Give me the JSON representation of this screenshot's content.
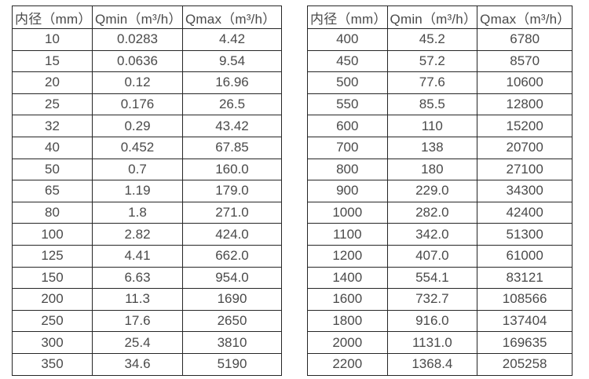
{
  "colors": {
    "border": "#262626",
    "text": "#4a4a4a",
    "background": "#ffffff"
  },
  "tables": [
    {
      "name": "flow-spec-table-small-diameters",
      "headers": [
        "内径（mm）",
        "Qmin（m³/h）",
        "Qmax（m³/h）"
      ],
      "rows": [
        [
          "10",
          "0.0283",
          "4.42"
        ],
        [
          "15",
          "0.0636",
          "9.54"
        ],
        [
          "20",
          "0.12",
          "16.96"
        ],
        [
          "25",
          "0.176",
          "26.5"
        ],
        [
          "32",
          "0.29",
          "43.42"
        ],
        [
          "40",
          "0.452",
          "67.85"
        ],
        [
          "50",
          "0.7",
          "160.0"
        ],
        [
          "65",
          "1.19",
          "179.0"
        ],
        [
          "80",
          "1.8",
          "271.0"
        ],
        [
          "100",
          "2.82",
          "424.0"
        ],
        [
          "125",
          "4.41",
          "662.0"
        ],
        [
          "150",
          "6.63",
          "954.0"
        ],
        [
          "200",
          "11.3",
          "1690"
        ],
        [
          "250",
          "17.6",
          "2650"
        ],
        [
          "300",
          "25.4",
          "3810"
        ],
        [
          "350",
          "34.6",
          "5190"
        ]
      ]
    },
    {
      "name": "flow-spec-table-large-diameters",
      "headers": [
        "内径（mm）",
        "Qmin（m³/h）",
        "Qmax（m³/h）"
      ],
      "rows": [
        [
          "400",
          "45.2",
          "6780"
        ],
        [
          "450",
          "57.2",
          "8570"
        ],
        [
          "500",
          "77.6",
          "10600"
        ],
        [
          "550",
          "85.5",
          "12800"
        ],
        [
          "600",
          "110",
          "15200"
        ],
        [
          "700",
          "138",
          "20700"
        ],
        [
          "800",
          "180",
          "27100"
        ],
        [
          "900",
          "229.0",
          "34300"
        ],
        [
          "1000",
          "282.0",
          "42400"
        ],
        [
          "1100",
          "342.0",
          "51300"
        ],
        [
          "1200",
          "407.0",
          "61000"
        ],
        [
          "1400",
          "554.1",
          "83121"
        ],
        [
          "1600",
          "732.7",
          "108566"
        ],
        [
          "1800",
          "916.0",
          "137404"
        ],
        [
          "2000",
          "1131.0",
          "169635"
        ],
        [
          "2200",
          "1368.4",
          "205258"
        ]
      ]
    }
  ]
}
